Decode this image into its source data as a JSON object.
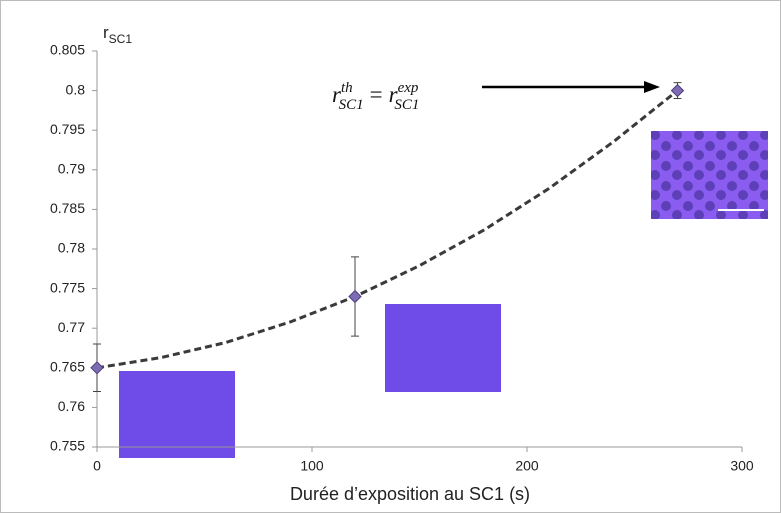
{
  "chart_data": {
    "type": "scatter",
    "ylabel": {
      "base": "r",
      "sub": "SC1"
    },
    "xlabel": "Durée d’exposition au SC1 (s)",
    "annotation": {
      "lhs": {
        "base": "r",
        "sub": "SC1",
        "sup": "th"
      },
      "eq": "=",
      "rhs": {
        "base": "r",
        "sub": "SC1",
        "sup": "exp"
      }
    },
    "xlim": [
      0,
      300
    ],
    "xticks": [
      0,
      100,
      200,
      300
    ],
    "ylim": [
      0.755,
      0.805
    ],
    "yticks": [
      0.755,
      0.76,
      0.765,
      0.77,
      0.775,
      0.78,
      0.785,
      0.79,
      0.795,
      0.8,
      0.805
    ],
    "series": [
      {
        "x": [
          0,
          120,
          270
        ],
        "values": [
          0.765,
          0.774,
          0.8
        ],
        "errors": [
          0.003,
          0.005,
          0.001
        ],
        "color": "#7e6bb5"
      }
    ],
    "trendline": {
      "x": [
        0,
        30,
        60,
        90,
        120,
        150,
        180,
        210,
        240,
        270
      ],
      "values": [
        0.765,
        0.7663,
        0.7682,
        0.7708,
        0.774,
        0.7779,
        0.7824,
        0.7876,
        0.7935,
        0.8
      ],
      "color": "#3a3a3a"
    }
  }
}
